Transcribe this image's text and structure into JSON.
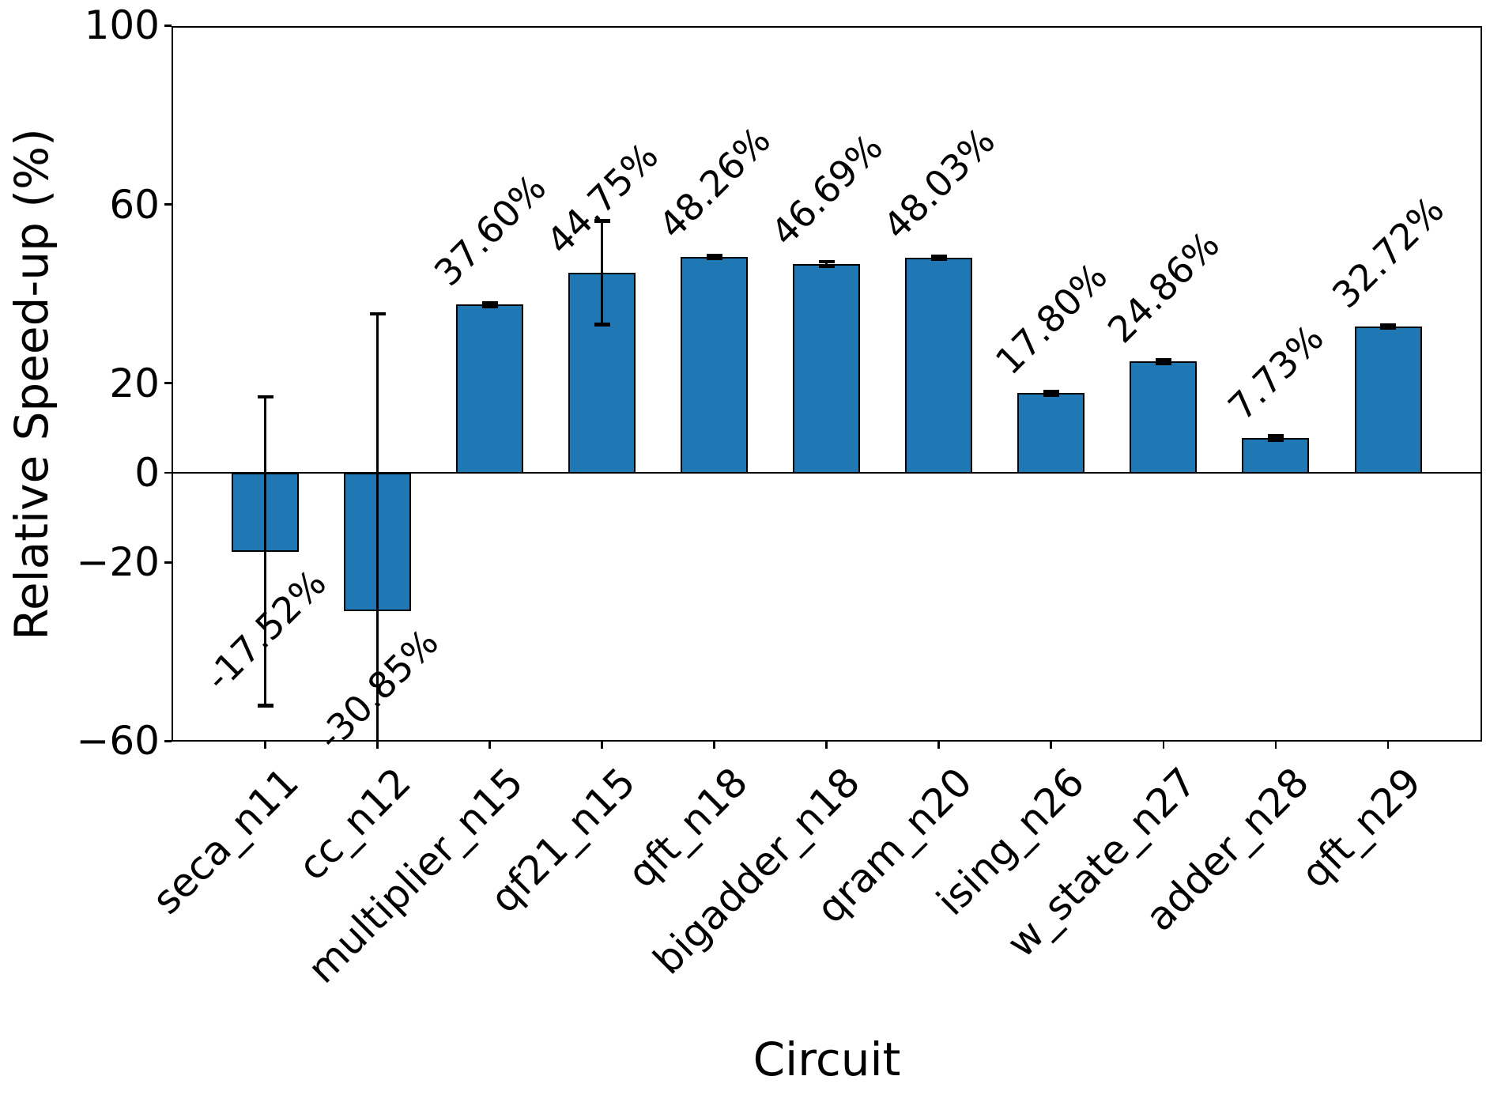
{
  "chart_data": {
    "type": "bar",
    "title": "",
    "xlabel": "Circuit",
    "ylabel": "Relative Speed-up (%)",
    "categories": [
      "seca_n11",
      "cc_n12",
      "multiplier_n15",
      "qf21_n15",
      "qft_n18",
      "bigadder_n18",
      "qram_n20",
      "ising_n26",
      "w_state_n27",
      "adder_n28",
      "qft_n29"
    ],
    "values": [
      -17.52,
      -30.85,
      37.6,
      44.75,
      48.26,
      46.69,
      48.03,
      17.8,
      24.86,
      7.73,
      32.72
    ],
    "errors": [
      34.5,
      66.4,
      0.4,
      11.6,
      0.35,
      0.5,
      0.3,
      0.4,
      0.4,
      0.5,
      0.35
    ],
    "bar_labels": [
      "-17.52%",
      "-30.85%",
      "37.60%",
      "44.75%",
      "48.26%",
      "46.69%",
      "48.03%",
      "17.80%",
      "24.86%",
      "7.73%",
      "32.72%"
    ],
    "ylim": [
      -60,
      100
    ],
    "yticks": [
      100,
      60,
      20,
      0,
      -20,
      -60
    ],
    "ytick_labels": [
      "100",
      "60",
      "20",
      "0",
      "−20",
      "−60"
    ],
    "bar_color": "#1f77b4",
    "bar_edge_color": "#000000",
    "error_color": "#000000",
    "background_color": "#ffffff",
    "grid": false,
    "legend": null
  }
}
